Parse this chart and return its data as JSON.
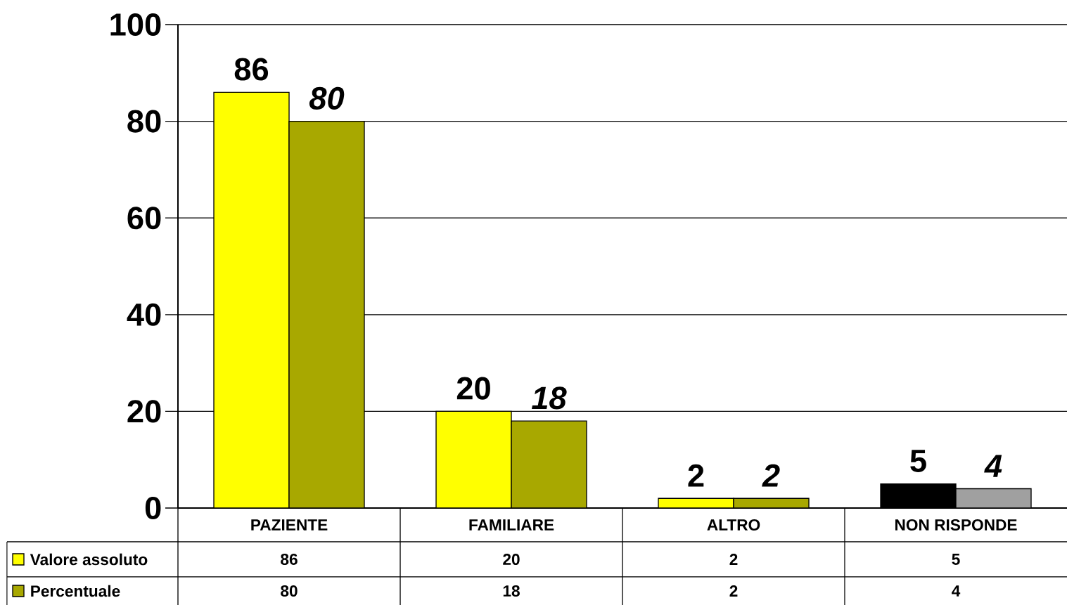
{
  "chart_data": {
    "type": "bar",
    "categories": [
      "PAZIENTE",
      "FAMILIARE",
      "ALTRO",
      "NON RISPONDE"
    ],
    "series": [
      {
        "name": "Valore assoluto",
        "color": "#ffff00",
        "colors": [
          "#ffff00",
          "#ffff00",
          "#ffff00",
          "#000000"
        ],
        "values": [
          86,
          20,
          2,
          5
        ],
        "value_labels": [
          "86",
          "20",
          "2",
          "5"
        ]
      },
      {
        "name": "Percentuale",
        "color": "#a8a800",
        "colors": [
          "#a8a800",
          "#a8a800",
          "#a8a800",
          "#a0a0a0"
        ],
        "values": [
          80,
          18,
          2,
          4
        ],
        "value_labels": [
          "80",
          "18",
          "2",
          "4"
        ]
      }
    ],
    "annotations": [
      "86",
      "20",
      "2",
      "5",
      "80",
      "18",
      "2",
      "4"
    ],
    "ylim": [
      0,
      100
    ],
    "yticks": [
      0,
      20,
      40,
      60,
      80,
      100
    ],
    "grid": "y",
    "legend": "bottom",
    "data_labels": true
  }
}
